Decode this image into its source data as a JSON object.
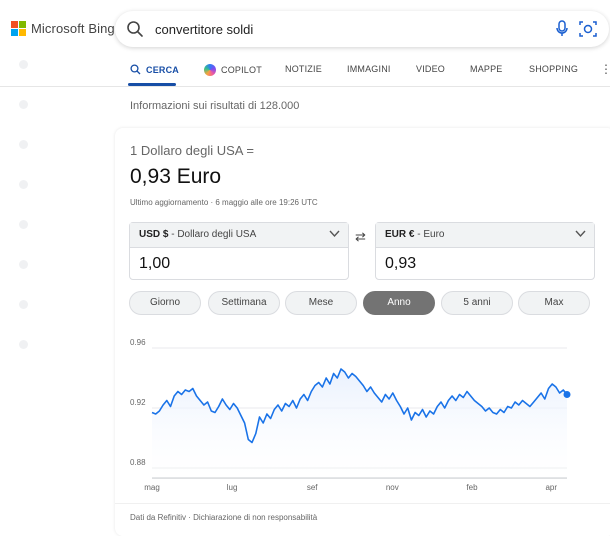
{
  "brand": {
    "name": "Microsoft Bing",
    "logo_colors": [
      "#f25022",
      "#7fba00",
      "#00a4ef",
      "#ffb900"
    ]
  },
  "search": {
    "query": "convertitore soldi",
    "icons": [
      "search-icon",
      "microphone-icon",
      "visual-search-icon"
    ]
  },
  "tabs": [
    {
      "label": "CERCA",
      "icon": "search-icon",
      "active": true
    },
    {
      "label": "COPILOT",
      "icon": "copilot-icon",
      "active": false
    },
    {
      "label": "NOTIZIE",
      "active": false
    },
    {
      "label": "IMMAGINI",
      "active": false
    },
    {
      "label": "VIDEO",
      "active": false
    },
    {
      "label": "MAPPE",
      "active": false
    },
    {
      "label": "SHOPPING",
      "active": false
    }
  ],
  "results_info": "Informazioni sui risultati di 128.000",
  "converter": {
    "subtitle": "1 Dollaro degli USA =",
    "rate": "0,93 Euro",
    "updated": "Ultimo aggiornamento · 6 maggio alle ore 19:26 UTC",
    "from": {
      "code": "USD $",
      "name": " - Dollaro degli USA",
      "value": "1,00"
    },
    "to": {
      "code": "EUR €",
      "name": " - Euro",
      "value": "0,93"
    },
    "swap_icon": "swap-arrows-icon",
    "periods": [
      "Giorno",
      "Settimana",
      "Mese",
      "Anno",
      "5 anni",
      "Max"
    ],
    "active_period": "Anno",
    "footer": "Dati da Refinitiv · Dichiarazione di non responsabilità",
    "accent_color": "#1a73e8"
  },
  "chart_data": {
    "type": "area",
    "title": "",
    "xlabel": "",
    "ylabel": "",
    "ylim": [
      0.88,
      0.96
    ],
    "y_ticks": [
      "0.96",
      "0.92",
      "0.88"
    ],
    "x_ticks": [
      {
        "label": "mag",
        "t": 0.0
      },
      {
        "label": "lug",
        "t": 0.193
      },
      {
        "label": "sef",
        "t": 0.386
      },
      {
        "label": "nov",
        "t": 0.579
      },
      {
        "label": "feb",
        "t": 0.771
      },
      {
        "label": "apr",
        "t": 0.962
      }
    ],
    "series": [
      {
        "values": [
          0.917,
          0.916,
          0.918,
          0.922,
          0.925,
          0.921,
          0.928,
          0.931,
          0.929,
          0.932,
          0.931,
          0.933,
          0.928,
          0.925,
          0.922,
          0.924,
          0.918,
          0.917,
          0.921,
          0.926,
          0.922,
          0.919,
          0.923,
          0.92,
          0.915,
          0.91,
          0.899,
          0.897,
          0.903,
          0.914,
          0.91,
          0.916,
          0.913,
          0.919,
          0.922,
          0.918,
          0.923,
          0.921,
          0.925,
          0.92,
          0.926,
          0.929,
          0.925,
          0.931,
          0.935,
          0.937,
          0.934,
          0.94,
          0.936,
          0.943,
          0.94,
          0.946,
          0.944,
          0.94,
          0.943,
          0.941,
          0.938,
          0.935,
          0.931,
          0.934,
          0.93,
          0.927,
          0.924,
          0.929,
          0.926,
          0.93,
          0.925,
          0.921,
          0.916,
          0.92,
          0.912,
          0.917,
          0.915,
          0.919,
          0.914,
          0.918,
          0.916,
          0.921,
          0.924,
          0.92,
          0.925,
          0.928,
          0.925,
          0.929,
          0.927,
          0.931,
          0.928,
          0.925,
          0.923,
          0.921,
          0.918,
          0.92,
          0.917,
          0.916,
          0.919,
          0.917,
          0.921,
          0.92,
          0.924,
          0.922,
          0.925,
          0.923,
          0.921,
          0.924,
          0.927,
          0.93,
          0.926,
          0.933,
          0.936,
          0.934,
          0.93,
          0.932,
          0.929
        ]
      }
    ],
    "line_color": "#1a73e8",
    "fill_color": "#e8f0fe",
    "grid": true
  }
}
